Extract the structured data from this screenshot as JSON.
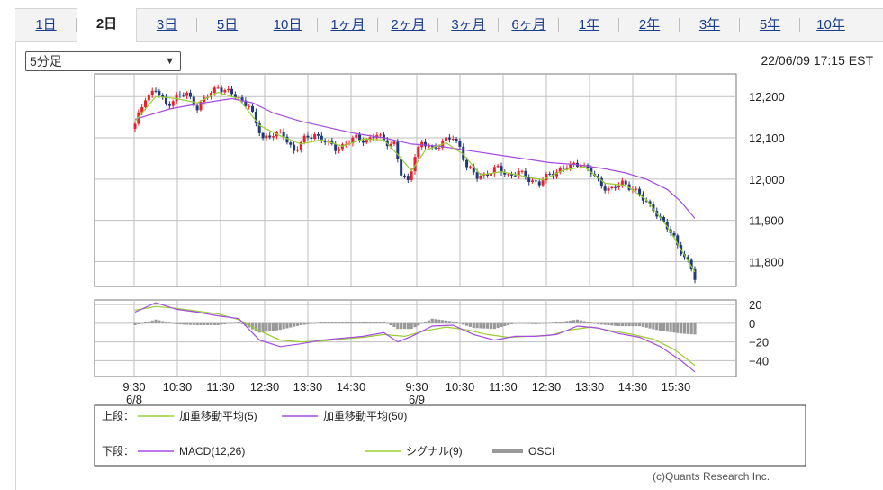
{
  "tabs": [
    {
      "label": "1日",
      "active": false
    },
    {
      "label": "2日",
      "active": true
    },
    {
      "label": "3日",
      "active": false
    },
    {
      "label": "5日",
      "active": false
    },
    {
      "label": "10日",
      "active": false
    },
    {
      "label": "1ヶ月",
      "active": false
    },
    {
      "label": "2ヶ月",
      "active": false
    },
    {
      "label": "3ヶ月",
      "active": false
    },
    {
      "label": "6ヶ月",
      "active": false
    },
    {
      "label": "1年",
      "active": false
    },
    {
      "label": "2年",
      "active": false
    },
    {
      "label": "3年",
      "active": false
    },
    {
      "label": "5年",
      "active": false
    },
    {
      "label": "10年",
      "active": false
    }
  ],
  "interval_select": {
    "value": "5分足"
  },
  "datetime": "22/06/09 17:15 EST",
  "credit": "(c)Quants Research Inc.",
  "colors": {
    "up": "#e8202a",
    "down": "#1f3a78",
    "ma5": "#9acd32",
    "ma50": "#a64be0",
    "macd": "#a64be0",
    "signal": "#9acd32",
    "osci": "#999999",
    "grid": "#bfbfbf"
  },
  "chart_data": [
    {
      "type": "candlestick",
      "panel": "upper",
      "y_ticks": [
        12200,
        12100,
        12000,
        11900,
        11800
      ],
      "ylim": [
        11740,
        12255
      ],
      "x_tick_labels": [
        "9:30\n6/8",
        "10:30",
        "11:30",
        "12:30",
        "13:30",
        "14:30",
        "9:30\n6/9",
        "10:30",
        "11:30",
        "12:30",
        "13:30",
        "14:30",
        "15:30"
      ],
      "close_path": [
        [
          0,
          12130
        ],
        [
          3,
          12200
        ],
        [
          6,
          12215
        ],
        [
          9,
          12180
        ],
        [
          12,
          12200
        ],
        [
          15,
          12205
        ],
        [
          18,
          12175
        ],
        [
          21,
          12200
        ],
        [
          24,
          12225
        ],
        [
          27,
          12210
        ],
        [
          30,
          12195
        ],
        [
          33,
          12180
        ],
        [
          35,
          12130
        ],
        [
          37,
          12100
        ],
        [
          40,
          12110
        ],
        [
          43,
          12105
        ],
        [
          46,
          12070
        ],
        [
          49,
          12095
        ],
        [
          52,
          12110
        ],
        [
          55,
          12090
        ],
        [
          58,
          12075
        ],
        [
          61,
          12085
        ],
        [
          64,
          12100
        ],
        [
          67,
          12095
        ],
        [
          70,
          12105
        ],
        [
          73,
          12090
        ],
        [
          75,
          12085
        ],
        [
          77,
          12010
        ],
        [
          79,
          11995
        ],
        [
          81,
          12060
        ],
        [
          83,
          12085
        ],
        [
          86,
          12075
        ],
        [
          89,
          12090
        ],
        [
          92,
          12100
        ],
        [
          94,
          12080
        ],
        [
          96,
          12030
        ],
        [
          99,
          12005
        ],
        [
          102,
          12015
        ],
        [
          105,
          12025
        ],
        [
          108,
          12010
        ],
        [
          111,
          12015
        ],
        [
          114,
          12000
        ],
        [
          117,
          11990
        ],
        [
          120,
          12010
        ],
        [
          123,
          12025
        ],
        [
          126,
          12030
        ],
        [
          129,
          12040
        ],
        [
          132,
          12015
        ],
        [
          135,
          11985
        ],
        [
          138,
          11975
        ],
        [
          141,
          11990
        ],
        [
          144,
          11980
        ],
        [
          147,
          11950
        ],
        [
          150,
          11930
        ],
        [
          153,
          11890
        ],
        [
          156,
          11860
        ],
        [
          159,
          11810
        ],
        [
          161,
          11780
        ],
        [
          162,
          11760
        ]
      ],
      "series": [
        {
          "name": "加重移動平均(5)",
          "values": [
            [
              0,
              12140
            ],
            [
              6,
              12200
            ],
            [
              12,
              12195
            ],
            [
              18,
              12185
            ],
            [
              24,
              12210
            ],
            [
              30,
              12195
            ],
            [
              36,
              12130
            ],
            [
              42,
              12105
            ],
            [
              48,
              12085
            ],
            [
              54,
              12095
            ],
            [
              60,
              12080
            ],
            [
              66,
              12097
            ],
            [
              72,
              12095
            ],
            [
              76,
              12060
            ],
            [
              80,
              12020
            ],
            [
              84,
              12070
            ],
            [
              90,
              12088
            ],
            [
              95,
              12060
            ],
            [
              100,
              12010
            ],
            [
              106,
              12018
            ],
            [
              112,
              12008
            ],
            [
              118,
              11998
            ],
            [
              124,
              12022
            ],
            [
              130,
              12030
            ],
            [
              136,
              11990
            ],
            [
              142,
              11985
            ],
            [
              148,
              11950
            ],
            [
              154,
              11885
            ],
            [
              158,
              11830
            ],
            [
              162,
              11775
            ]
          ]
        },
        {
          "name": "加重移動平均(50)",
          "values": [
            [
              0,
              12145
            ],
            [
              10,
              12170
            ],
            [
              20,
              12185
            ],
            [
              28,
              12195
            ],
            [
              34,
              12185
            ],
            [
              40,
              12160
            ],
            [
              48,
              12140
            ],
            [
              56,
              12125
            ],
            [
              64,
              12110
            ],
            [
              72,
              12100
            ],
            [
              80,
              12085
            ],
            [
              88,
              12080
            ],
            [
              96,
              12070
            ],
            [
              104,
              12060
            ],
            [
              112,
              12050
            ],
            [
              120,
              12040
            ],
            [
              128,
              12035
            ],
            [
              136,
              12025
            ],
            [
              142,
              12015
            ],
            [
              148,
              12000
            ],
            [
              154,
              11975
            ],
            [
              158,
              11945
            ],
            [
              162,
              11905
            ]
          ]
        }
      ]
    },
    {
      "type": "line",
      "panel": "lower",
      "y_ticks": [
        20,
        0,
        -20,
        -40
      ],
      "ylim": [
        -57,
        25
      ],
      "series": [
        {
          "name": "MACD(12,26)",
          "values": [
            [
              0,
              12
            ],
            [
              6,
              22
            ],
            [
              12,
              15
            ],
            [
              18,
              12
            ],
            [
              24,
              8
            ],
            [
              30,
              5
            ],
            [
              36,
              -18
            ],
            [
              42,
              -25
            ],
            [
              48,
              -22
            ],
            [
              54,
              -18
            ],
            [
              60,
              -16
            ],
            [
              66,
              -14
            ],
            [
              72,
              -10
            ],
            [
              76,
              -20
            ],
            [
              80,
              -14
            ],
            [
              86,
              -3
            ],
            [
              92,
              -2
            ],
            [
              98,
              -12
            ],
            [
              104,
              -18
            ],
            [
              110,
              -14
            ],
            [
              116,
              -14
            ],
            [
              122,
              -12
            ],
            [
              128,
              -3
            ],
            [
              134,
              -5
            ],
            [
              140,
              -11
            ],
            [
              146,
              -15
            ],
            [
              152,
              -25
            ],
            [
              158,
              -40
            ],
            [
              162,
              -52
            ]
          ]
        },
        {
          "name": "シグナル(9)",
          "values": [
            [
              0,
              14
            ],
            [
              6,
              18
            ],
            [
              12,
              16
            ],
            [
              18,
              13
            ],
            [
              24,
              10
            ],
            [
              30,
              4
            ],
            [
              36,
              -8
            ],
            [
              42,
              -18
            ],
            [
              48,
              -20
            ],
            [
              54,
              -19
            ],
            [
              60,
              -17
            ],
            [
              66,
              -15
            ],
            [
              72,
              -12
            ],
            [
              78,
              -14
            ],
            [
              84,
              -8
            ],
            [
              90,
              -4
            ],
            [
              96,
              -7
            ],
            [
              102,
              -12
            ],
            [
              108,
              -15
            ],
            [
              114,
              -14
            ],
            [
              120,
              -13
            ],
            [
              126,
              -7
            ],
            [
              132,
              -4
            ],
            [
              138,
              -8
            ],
            [
              144,
              -12
            ],
            [
              150,
              -17
            ],
            [
              156,
              -28
            ],
            [
              162,
              -45
            ]
          ]
        },
        {
          "name": "OSCI",
          "values": [
            [
              0,
              -2
            ],
            [
              6,
              4
            ],
            [
              12,
              -1
            ],
            [
              18,
              -2
            ],
            [
              24,
              -2
            ],
            [
              30,
              1
            ],
            [
              36,
              -10
            ],
            [
              42,
              -7
            ],
            [
              48,
              -2
            ],
            [
              54,
              1
            ],
            [
              60,
              1
            ],
            [
              66,
              1
            ],
            [
              72,
              2
            ],
            [
              76,
              -6
            ],
            [
              80,
              -6
            ],
            [
              86,
              5
            ],
            [
              92,
              2
            ],
            [
              98,
              -5
            ],
            [
              104,
              -6
            ],
            [
              110,
              0
            ],
            [
              116,
              -1
            ],
            [
              122,
              1
            ],
            [
              128,
              4
            ],
            [
              134,
              -1
            ],
            [
              140,
              -3
            ],
            [
              146,
              -3
            ],
            [
              152,
              -8
            ],
            [
              158,
              -11
            ],
            [
              162,
              -12
            ]
          ]
        }
      ]
    }
  ],
  "legend": {
    "upper_label": "上段：",
    "lower_label": "下段：",
    "ma5": "加重移動平均(5)",
    "ma50": "加重移動平均(50)",
    "macd": "MACD(12,26)",
    "signal": "シグナル(9)",
    "osci": "OSCI"
  }
}
